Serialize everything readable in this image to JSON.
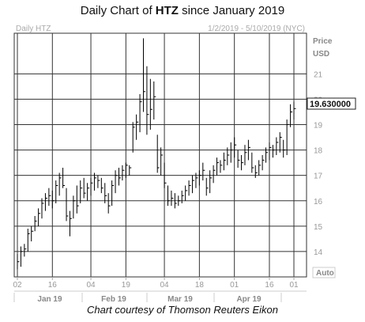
{
  "title_prefix": "Daily Chart of ",
  "title_ticker": "HTZ",
  "title_suffix": " since January 2019",
  "caption": "Chart courtesy of Thomson Reuters Eikon",
  "chart_data": {
    "type": "ohlc",
    "panel_label": "Daily HTZ",
    "date_range": "1/2/2019 - 5/10/2019 (NYC)",
    "price_label": "Price",
    "currency_label": "USD",
    "last_price_label": "19.630000",
    "scale_button": "Auto",
    "ylim": [
      13,
      22.6
    ],
    "yticks": [
      14,
      15,
      16,
      17,
      18,
      19,
      20,
      21
    ],
    "day_ticks": [
      "02",
      "16",
      "04",
      "19",
      "04",
      "18",
      "01",
      "16",
      "01"
    ],
    "month_ticks": [
      "Jan 19",
      "Feb 19",
      "Mar 19",
      "Apr 19"
    ],
    "last_close": 19.63,
    "grid": true,
    "bars": [
      [
        13.9,
        13.3,
        13.6
      ],
      [
        14.2,
        13.4,
        14.0
      ],
      [
        14.3,
        13.8,
        14.1
      ],
      [
        14.9,
        14.0,
        14.7
      ],
      [
        15.0,
        14.4,
        14.8
      ],
      [
        15.4,
        14.8,
        15.2
      ],
      [
        15.7,
        15.0,
        15.5
      ],
      [
        16.1,
        15.3,
        15.9
      ],
      [
        16.3,
        15.6,
        16.1
      ],
      [
        16.5,
        15.8,
        16.2
      ],
      [
        16.4,
        15.7,
        16.0
      ],
      [
        16.8,
        15.9,
        16.6
      ],
      [
        17.1,
        16.2,
        16.9
      ],
      [
        17.3,
        16.5,
        16.6
      ],
      [
        16.5,
        15.2,
        15.4
      ],
      [
        15.6,
        14.6,
        15.3
      ],
      [
        16.2,
        15.3,
        16.0
      ],
      [
        16.6,
        15.5,
        15.8
      ],
      [
        16.8,
        15.9,
        16.5
      ],
      [
        16.9,
        16.1,
        16.3
      ],
      [
        16.7,
        16.0,
        16.5
      ],
      [
        16.9,
        16.2,
        16.7
      ],
      [
        17.1,
        16.4,
        16.9
      ],
      [
        17.0,
        16.5,
        16.8
      ],
      [
        16.9,
        16.3,
        16.5
      ],
      [
        16.7,
        15.9,
        16.2
      ],
      [
        16.3,
        15.5,
        15.8
      ],
      [
        16.8,
        15.8,
        16.6
      ],
      [
        17.2,
        16.3,
        17.0
      ],
      [
        17.3,
        16.6,
        16.9
      ],
      [
        17.4,
        16.8,
        17.2
      ],
      [
        17.5,
        16.9,
        17.4
      ],
      [
        17.4,
        17.0,
        17.3
      ],
      [
        19.1,
        17.9,
        18.9
      ],
      [
        19.4,
        18.4,
        19.1
      ],
      [
        20.2,
        18.7,
        19.9
      ],
      [
        22.4,
        19.5,
        20.3
      ],
      [
        21.3,
        18.6,
        19.4
      ],
      [
        20.8,
        18.8,
        19.6
      ],
      [
        20.7,
        19.2,
        20.1
      ],
      [
        18.6,
        17.1,
        17.3
      ],
      [
        18.1,
        17.0,
        17.8
      ],
      [
        17.5,
        16.5,
        16.7
      ],
      [
        16.6,
        15.8,
        16.0
      ],
      [
        16.4,
        15.8,
        16.1
      ],
      [
        16.3,
        15.7,
        15.9
      ],
      [
        16.2,
        15.8,
        16.0
      ],
      [
        16.4,
        15.9,
        16.2
      ],
      [
        16.6,
        16.0,
        16.4
      ],
      [
        16.8,
        16.2,
        16.6
      ],
      [
        17.0,
        16.3,
        16.8
      ],
      [
        17.1,
        16.5,
        16.9
      ],
      [
        17.2,
        16.6,
        17.0
      ],
      [
        17.5,
        16.8,
        17.2
      ],
      [
        16.9,
        16.2,
        16.5
      ],
      [
        17.2,
        16.3,
        16.9
      ],
      [
        17.4,
        16.7,
        17.2
      ],
      [
        17.7,
        17.0,
        17.5
      ],
      [
        17.6,
        17.1,
        17.4
      ],
      [
        17.9,
        17.2,
        17.6
      ],
      [
        18.1,
        17.4,
        17.8
      ],
      [
        18.3,
        17.5,
        18.0
      ],
      [
        18.5,
        17.7,
        18.2
      ],
      [
        18.0,
        17.3,
        17.6
      ],
      [
        17.8,
        17.2,
        17.5
      ],
      [
        18.2,
        17.4,
        17.9
      ],
      [
        18.4,
        17.6,
        18.1
      ],
      [
        17.9,
        17.1,
        17.3
      ],
      [
        17.4,
        16.9,
        17.1
      ],
      [
        17.6,
        17.0,
        17.4
      ],
      [
        17.8,
        17.2,
        17.6
      ],
      [
        18.1,
        17.5,
        17.9
      ],
      [
        18.3,
        17.6,
        18.1
      ],
      [
        18.2,
        17.7,
        18.0
      ],
      [
        18.5,
        17.8,
        18.3
      ],
      [
        18.7,
        17.9,
        18.5
      ],
      [
        18.4,
        17.7,
        18.0
      ],
      [
        19.2,
        17.8,
        19.0
      ],
      [
        19.8,
        18.9,
        19.5
      ],
      [
        19.9,
        19.2,
        19.63
      ]
    ]
  }
}
